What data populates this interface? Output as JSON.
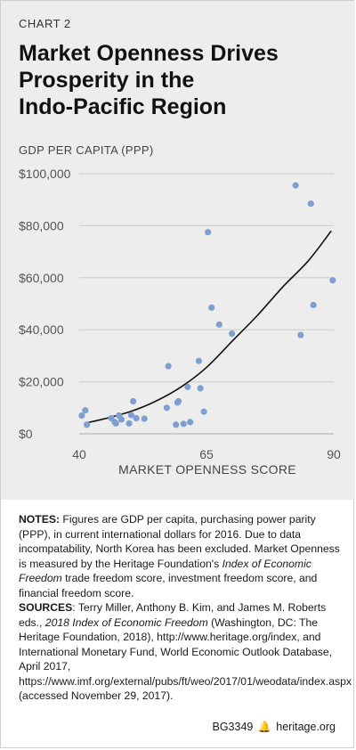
{
  "header": {
    "kicker": "CHART 2",
    "title_lines": [
      "Market Openness Drives",
      "Prosperity in the",
      "Indo-Pacific Region"
    ]
  },
  "chart_data": {
    "type": "scatter",
    "title": "Market Openness Drives Prosperity in the Indo-Pacific Region",
    "ylabel": "GDP PER CAPITA (PPP)",
    "xlabel": "MARKET OPENNESS SCORE",
    "xlim": [
      40,
      90
    ],
    "ylim": [
      0,
      100000
    ],
    "x_ticks": [
      40,
      65,
      90
    ],
    "x_tick_labels": [
      "40",
      "65",
      "90"
    ],
    "y_ticks": [
      0,
      20000,
      40000,
      60000,
      80000,
      100000
    ],
    "y_tick_labels": [
      "$0",
      "$20,000",
      "$40,000",
      "$60,000",
      "$80,000",
      "$100,000"
    ],
    "grid": "horizontal",
    "point_color": "#7f9fcf",
    "trend_color": "#111111",
    "points": [
      [
        40.5,
        7000
      ],
      [
        41.2,
        9000
      ],
      [
        41.5,
        3500
      ],
      [
        46.3,
        6000
      ],
      [
        47.0,
        4500
      ],
      [
        47.2,
        4000
      ],
      [
        47.8,
        7000
      ],
      [
        48.3,
        5500
      ],
      [
        49.8,
        4000
      ],
      [
        50.2,
        7200
      ],
      [
        50.6,
        12500
      ],
      [
        51.2,
        6000
      ],
      [
        52.8,
        5800
      ],
      [
        57.2,
        10000
      ],
      [
        57.5,
        26000
      ],
      [
        59.0,
        3500
      ],
      [
        59.3,
        12000
      ],
      [
        59.5,
        12500
      ],
      [
        60.5,
        3800
      ],
      [
        61.3,
        18000
      ],
      [
        61.8,
        4500
      ],
      [
        63.5,
        28000
      ],
      [
        63.8,
        17500
      ],
      [
        64.5,
        8500
      ],
      [
        65.3,
        77500
      ],
      [
        66.0,
        48500
      ],
      [
        67.5,
        42000
      ],
      [
        70.0,
        38500
      ],
      [
        82.5,
        95500
      ],
      [
        83.5,
        38000
      ],
      [
        85.5,
        88500
      ],
      [
        86.0,
        49500
      ],
      [
        89.8,
        59000
      ]
    ],
    "trend": [
      [
        41,
        4000
      ],
      [
        45,
        5800
      ],
      [
        50,
        8500
      ],
      [
        55,
        12500
      ],
      [
        60,
        18000
      ],
      [
        65,
        25500
      ],
      [
        70,
        35500
      ],
      [
        75,
        45500
      ],
      [
        80,
        56500
      ],
      [
        85,
        66500
      ],
      [
        89.5,
        78000
      ]
    ]
  },
  "notes": {
    "notes_label": "NOTES:",
    "notes_text_1": " Figures are GDP per capita, purchasing power parity (PPP), in current international dollars for 2016. Due to data incompatability, North Korea has been excluded. Market Openness is measured by the Heritage Foundation's ",
    "notes_italic": "Index of Economic Freedom",
    "notes_text_2": " trade freedom score, investment freedom score, and financial freedom score.",
    "sources_label": "SOURCES",
    "sources_text_1": ": Terry Miller, Anthony B. Kim, and James M. Roberts eds., ",
    "sources_italic": "2018 Index of Economic Freedom",
    "sources_text_2": " (Washington, DC: The Heritage Foundation, 2018), http://www.heritage.org/index, and International Monetary Fund, World Economic Outlook Database, April 2017, https://www.imf.org/external/pubs/ft/weo/2017/01/weodata/index.aspx (accessed November 29, 2017)."
  },
  "footer": {
    "code": "BG3349",
    "site": "heritage.org"
  }
}
